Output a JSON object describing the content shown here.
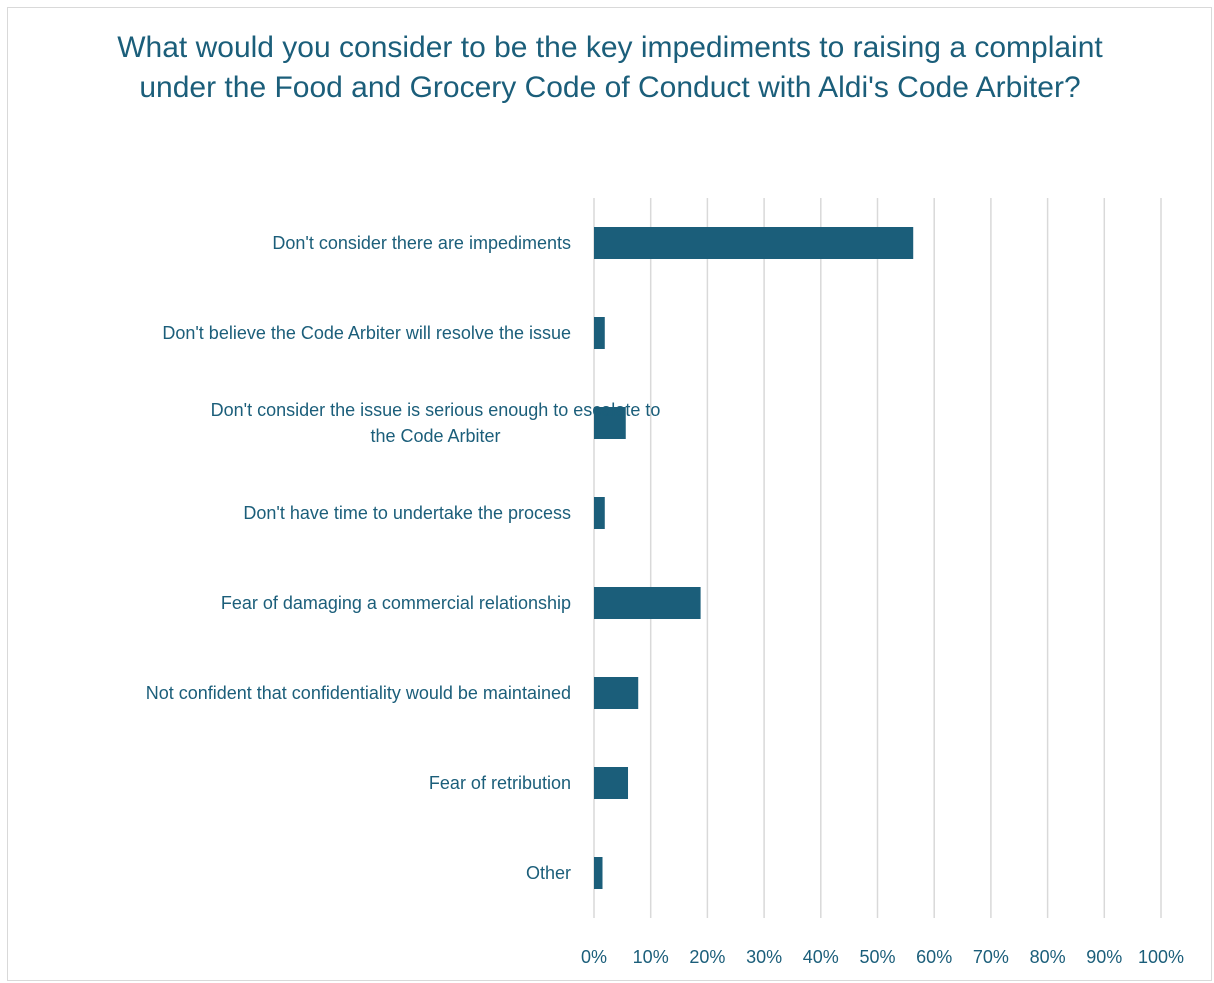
{
  "chart_data": {
    "type": "bar",
    "orientation": "horizontal",
    "title": "What would you consider to be the key impediments to raising a complaint under the Food and Grocery Code of Conduct with Aldi's Code Arbiter?",
    "categories": [
      "Don't consider there are impediments",
      "Don't believe the Code Arbiter will resolve the issue",
      "Don't consider the issue is serious enough to escalate to the Code Arbiter",
      "Don't have time to undertake the process",
      "Fear of damaging a commercial relationship",
      "Not confident that confidentiality would be maintained",
      "Fear of retribution",
      "Other"
    ],
    "category_lines": [
      [
        "Don't consider there are impediments"
      ],
      [
        "Don't believe the Code Arbiter will resolve the issue"
      ],
      [
        "Don't consider the issue is serious enough to escalate to",
        "the Code Arbiter"
      ],
      [
        "Don't have time to undertake the process"
      ],
      [
        "Fear of damaging a commercial relationship"
      ],
      [
        "Not confident that confidentiality would be maintained"
      ],
      [
        "Fear of retribution"
      ],
      [
        "Other"
      ]
    ],
    "values": [
      56.3,
      1.9,
      5.6,
      1.9,
      18.8,
      7.8,
      6.0,
      1.5
    ],
    "xlim": [
      0,
      100
    ],
    "xticks": [
      0,
      10,
      20,
      30,
      40,
      50,
      60,
      70,
      80,
      90,
      100
    ],
    "xtick_labels": [
      "0%",
      "10%",
      "20%",
      "30%",
      "40%",
      "50%",
      "60%",
      "70%",
      "80%",
      "90%",
      "100%"
    ],
    "xlabel": "",
    "ylabel": "",
    "grid": "vertical",
    "legend": "none",
    "colors": {
      "bar": "#1b5e7a",
      "text": "#1b5e7a",
      "grid": "#d9d9d9"
    }
  }
}
